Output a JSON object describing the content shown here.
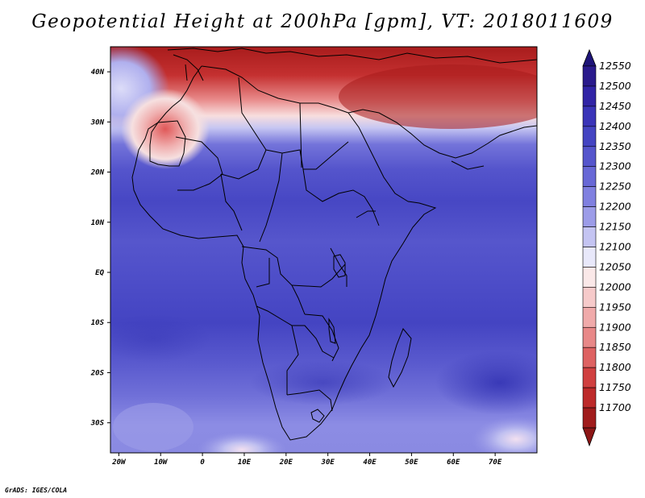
{
  "title": "Geopotential Height at 200hPa [gpm], VT: 2018011609",
  "credit": "GrADS: IGES/COLA",
  "map": {
    "lon_range": [
      -22,
      80
    ],
    "lat_range": [
      -36,
      45
    ],
    "x_ticks": [
      {
        "value": -20,
        "label": "20W"
      },
      {
        "value": -10,
        "label": "10W"
      },
      {
        "value": 0,
        "label": "0"
      },
      {
        "value": 10,
        "label": "10E"
      },
      {
        "value": 20,
        "label": "20E"
      },
      {
        "value": 30,
        "label": "30E"
      },
      {
        "value": 40,
        "label": "40E"
      },
      {
        "value": 50,
        "label": "50E"
      },
      {
        "value": 60,
        "label": "60E"
      },
      {
        "value": 70,
        "label": "70E"
      }
    ],
    "y_ticks": [
      {
        "value": 40,
        "label": "40N"
      },
      {
        "value": 30,
        "label": "30N"
      },
      {
        "value": 20,
        "label": "20N"
      },
      {
        "value": 10,
        "label": "10N"
      },
      {
        "value": 0,
        "label": "EQ"
      },
      {
        "value": -10,
        "label": "10S"
      },
      {
        "value": -20,
        "label": "20S"
      },
      {
        "value": -30,
        "label": "30S"
      }
    ]
  },
  "colorbar": {
    "levels": [
      "12550",
      "12500",
      "12450",
      "12400",
      "12350",
      "12300",
      "12250",
      "12200",
      "12150",
      "12100",
      "12050",
      "12000",
      "11950",
      "11900",
      "11850",
      "11800",
      "11750",
      "11700"
    ],
    "colors": [
      "#2a1a8c",
      "#3124a6",
      "#3a34b8",
      "#4444c2",
      "#5555cc",
      "#6868d6",
      "#8080e0",
      "#9c9ce8",
      "#c4c4f2",
      "#e8e8fa",
      "#fae8e8",
      "#f6caca",
      "#f0aaaa",
      "#e88888",
      "#de6262",
      "#d04040",
      "#bd2a2a",
      "#a01c1c"
    ],
    "top_arrow_color": "#1e1478",
    "bottom_arrow_color": "#8c1616"
  }
}
